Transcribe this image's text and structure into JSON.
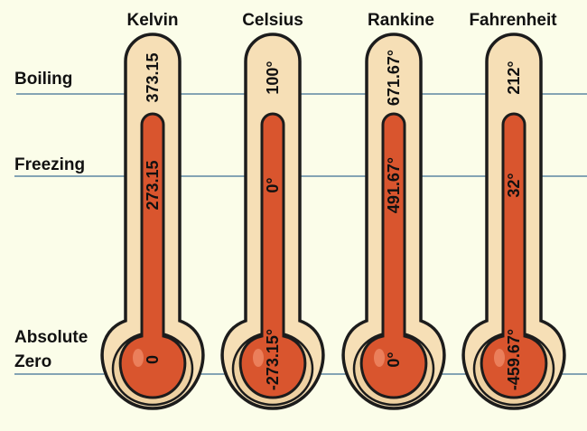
{
  "rows": {
    "boiling": "Boiling",
    "freezing": "Freezing",
    "absolute_zero_line1": "Absolute",
    "absolute_zero_line2": "Zero"
  },
  "scales": [
    {
      "name": "Kelvin",
      "boiling": "373.15",
      "freezing": "273.15",
      "absolute_zero": "0"
    },
    {
      "name": "Celsius",
      "boiling": "100°",
      "freezing": "0°",
      "absolute_zero": "-273.15°"
    },
    {
      "name": "Rankine",
      "boiling": "671.67°",
      "freezing": "491.67°",
      "absolute_zero": "0°"
    },
    {
      "name": "Fahrenheit",
      "boiling": "212°",
      "freezing": "32°",
      "absolute_zero": "-459.67°"
    }
  ],
  "colors": {
    "background": "#fbfde9",
    "thermometer_glass": "#f6dfb6",
    "thermometer_rim": "#eed1a2",
    "mercury": "#d9552e",
    "outline": "#1c1c1c",
    "reference_line": "#3d6f94"
  }
}
